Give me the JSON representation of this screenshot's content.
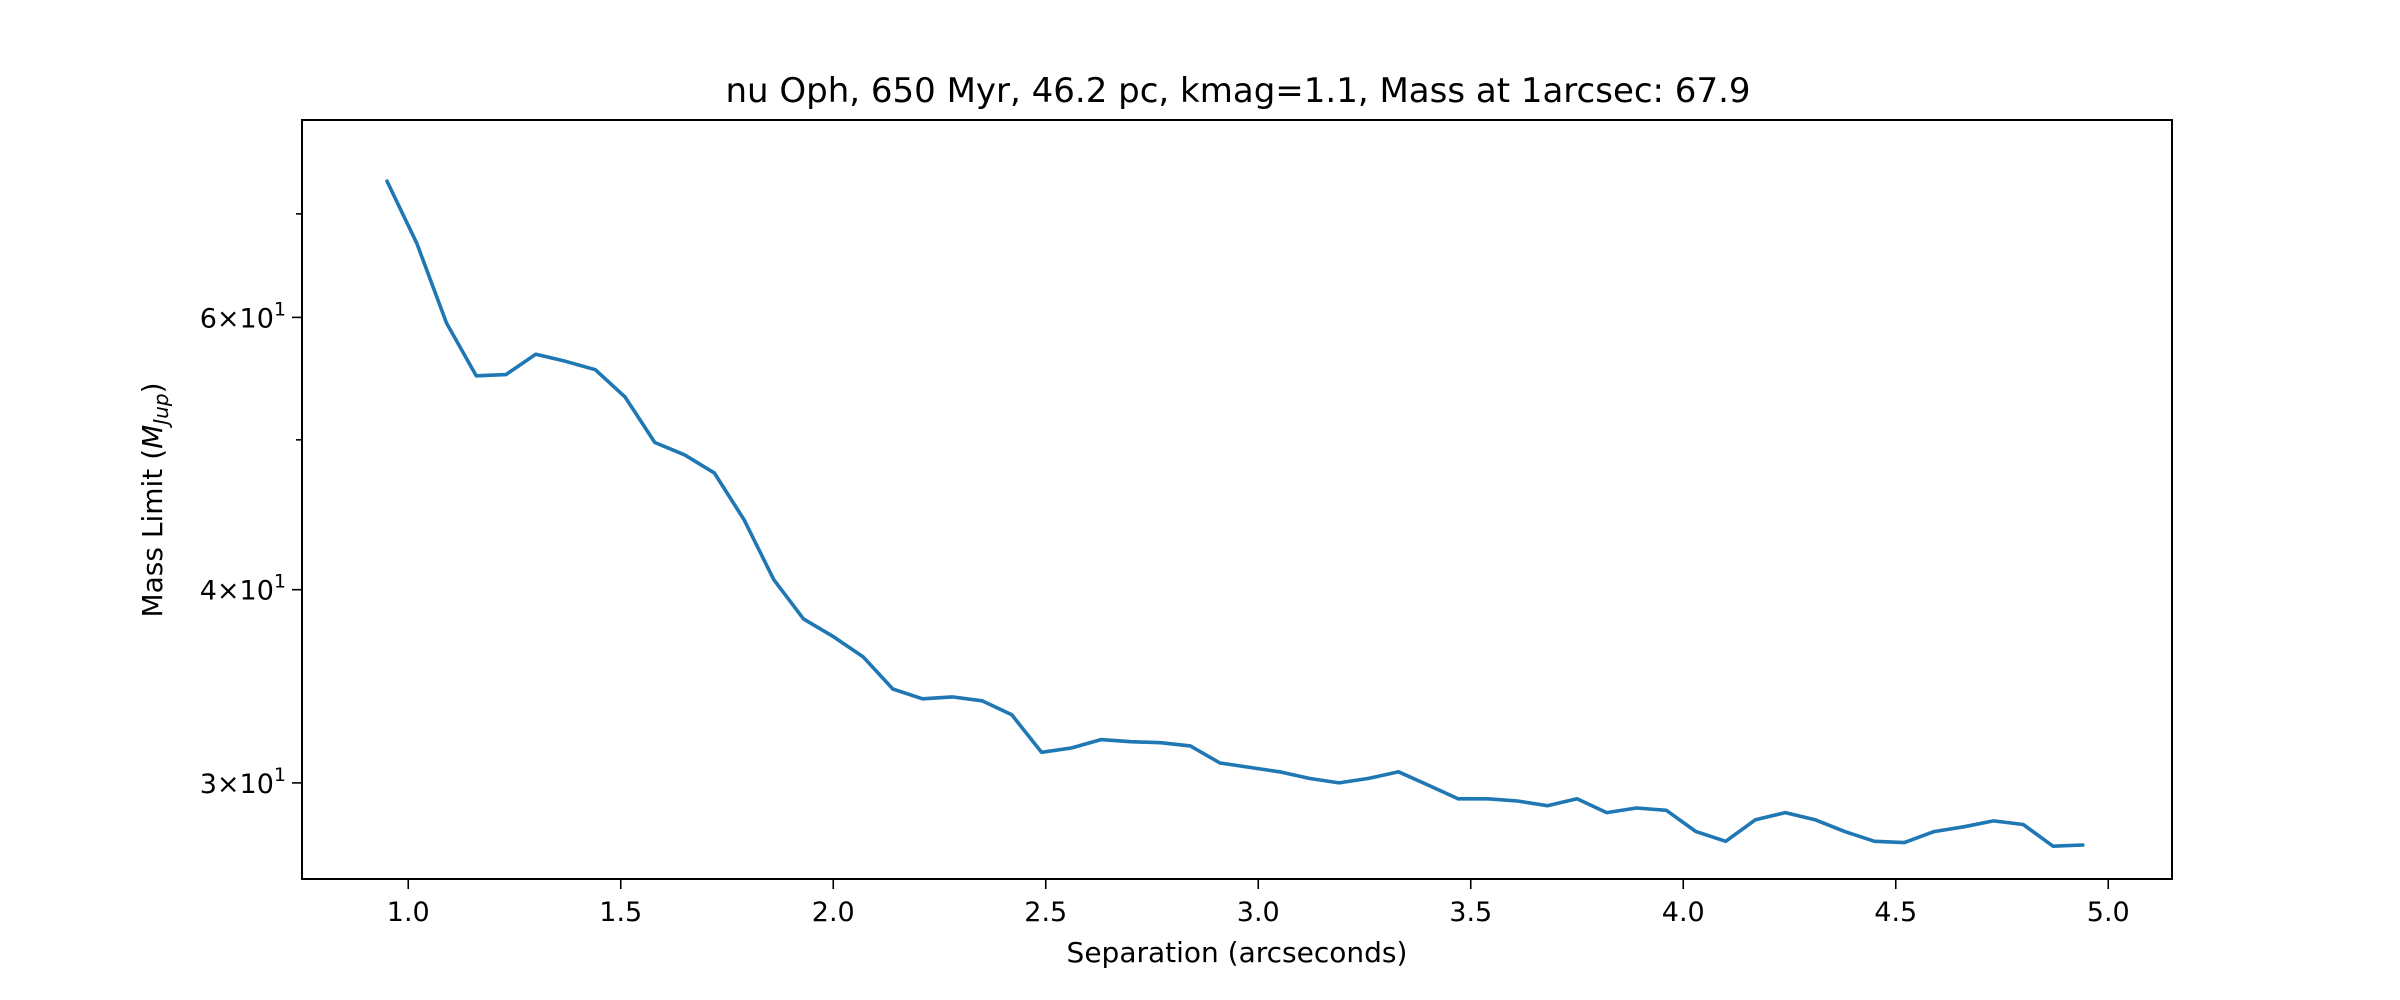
{
  "chart_data": {
    "type": "line",
    "title": "nu Oph, 650 Myr, 46.2 pc, kmag=1.1, Mass at 1arcsec: 67.9",
    "xlabel": "Separation (arcseconds)",
    "ylabel_prefix": "Mass Limit (",
    "ylabel_math": "M",
    "ylabel_sub": "Jup",
    "ylabel_suffix": ")",
    "xlim": [
      0.75,
      5.15
    ],
    "ylim": [
      26.0,
      80.5
    ],
    "yscale": "log",
    "grid": false,
    "x_ticks": [
      {
        "value": 1.0,
        "label": "1.0"
      },
      {
        "value": 1.5,
        "label": "1.5"
      },
      {
        "value": 2.0,
        "label": "2.0"
      },
      {
        "value": 2.5,
        "label": "2.5"
      },
      {
        "value": 3.0,
        "label": "3.0"
      },
      {
        "value": 3.5,
        "label": "3.5"
      },
      {
        "value": 4.0,
        "label": "4.0"
      },
      {
        "value": 4.5,
        "label": "4.5"
      },
      {
        "value": 5.0,
        "label": "5.0"
      }
    ],
    "y_major_ticks": [
      {
        "value": 30,
        "mantissa": "3",
        "base": "10",
        "exp": "1"
      },
      {
        "value": 40,
        "mantissa": "4",
        "base": "10",
        "exp": "1"
      },
      {
        "value": 60,
        "mantissa": "6",
        "base": "10",
        "exp": "1"
      }
    ],
    "y_minor_ticks": [
      50,
      70
    ],
    "series": [
      {
        "color": "#1f77b4",
        "x": [
          0.95,
          1.02,
          1.09,
          1.16,
          1.23,
          1.3,
          1.37,
          1.44,
          1.51,
          1.58,
          1.65,
          1.72,
          1.79,
          1.86,
          1.93,
          2.0,
          2.07,
          2.14,
          2.21,
          2.28,
          2.35,
          2.42,
          2.49,
          2.56,
          2.63,
          2.7,
          2.77,
          2.84,
          2.91,
          2.98,
          3.05,
          3.12,
          3.19,
          3.26,
          3.33,
          3.4,
          3.47,
          3.54,
          3.61,
          3.68,
          3.75,
          3.82,
          3.89,
          3.96,
          4.03,
          4.1,
          4.17,
          4.24,
          4.31,
          4.38,
          4.45,
          4.52,
          4.59,
          4.66,
          4.73,
          4.8,
          4.87,
          4.94
        ],
        "y": [
          73.5,
          67.0,
          59.5,
          55.0,
          55.1,
          56.8,
          56.2,
          55.5,
          53.3,
          49.8,
          48.9,
          47.6,
          44.4,
          40.6,
          38.3,
          37.3,
          36.2,
          34.5,
          34.0,
          34.1,
          33.9,
          33.2,
          31.4,
          31.6,
          32.0,
          31.9,
          31.85,
          31.7,
          30.9,
          30.7,
          30.5,
          30.2,
          30.0,
          30.2,
          30.5,
          29.9,
          29.3,
          29.3,
          29.2,
          29.0,
          29.3,
          28.7,
          28.9,
          28.8,
          27.9,
          27.5,
          28.4,
          28.7,
          28.4,
          27.9,
          27.5,
          27.45,
          27.9,
          28.1,
          28.35,
          28.2,
          27.3,
          27.35
        ]
      }
    ]
  }
}
